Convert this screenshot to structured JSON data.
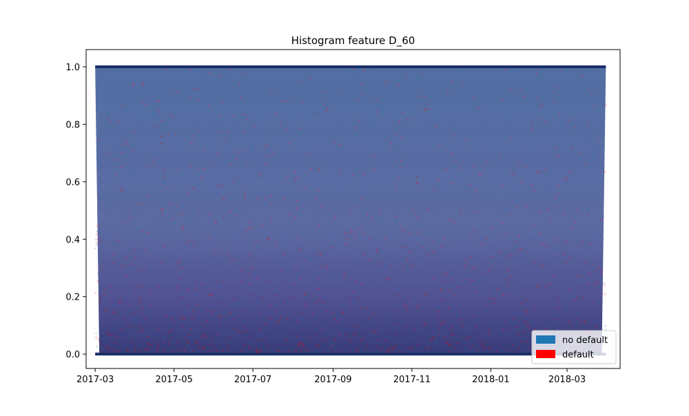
{
  "chart_data": {
    "type": "scatter",
    "title": "Histogram feature D_60",
    "xlabel": "",
    "ylabel": "",
    "x_axis_kind": "date",
    "xlim": [
      "2017-02-22",
      "2018-04-11"
    ],
    "ylim": [
      -0.05,
      1.06
    ],
    "x_ticks": [
      "2017-03",
      "2017-05",
      "2017-07",
      "2017-09",
      "2017-11",
      "2018-01",
      "2018-03"
    ],
    "y_ticks": [
      0.0,
      0.2,
      0.4,
      0.6,
      0.8,
      1.0
    ],
    "grid": false,
    "legend_position": "lower-right",
    "series": [
      {
        "name": "no default",
        "color": "#1f77b4",
        "x_range": [
          "2017-03-01",
          "2018-03-31"
        ],
        "y_range": [
          0.0,
          1.0
        ]
      },
      {
        "name": "default",
        "color": "#ff0000",
        "x_range": [
          "2017-03-01",
          "2018-03-31"
        ],
        "y_range": [
          0.0,
          1.0
        ]
      }
    ]
  }
}
